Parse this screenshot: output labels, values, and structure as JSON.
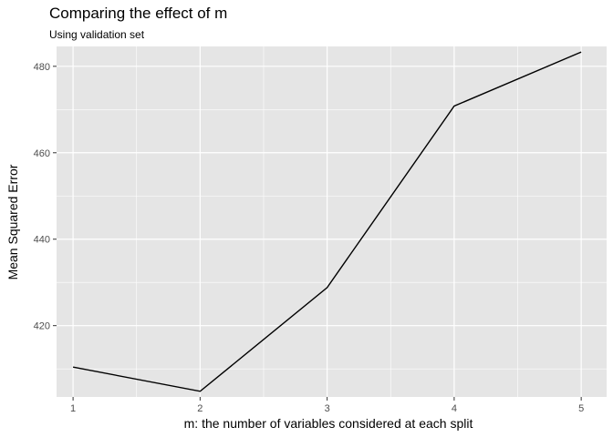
{
  "chart_data": {
    "type": "line",
    "title": "Comparing the effect of m",
    "subtitle": "Using validation set",
    "xlabel": "m: the number of variables considered at each split",
    "ylabel": "Mean Squared Error",
    "x": [
      1,
      2,
      3,
      4,
      5
    ],
    "y": [
      410.4,
      404.8,
      428.8,
      470.8,
      483.3
    ],
    "xlim": [
      0.87,
      5.2
    ],
    "ylim": [
      403.5,
      484.6
    ],
    "xticks": [
      1,
      2,
      3,
      4,
      5
    ],
    "yticks": [
      420,
      440,
      460,
      480
    ],
    "grid": true,
    "colors": {
      "panel": "#e5e5e5",
      "grid": "#ffffff",
      "line": "#000000"
    }
  }
}
